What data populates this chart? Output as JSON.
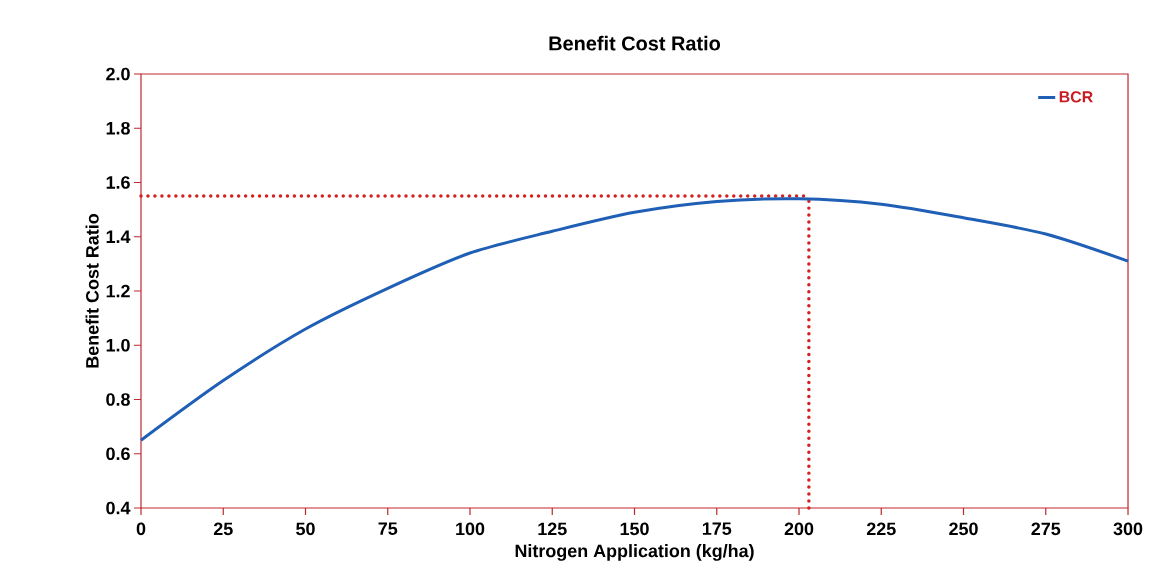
{
  "chart_data": {
    "type": "line",
    "title": "Benefit Cost Ratio",
    "xlabel": "Nitrogen Application (kg/ha)",
    "ylabel": "Benefit Cost Ratio",
    "x": [
      0,
      25,
      50,
      75,
      100,
      125,
      150,
      175,
      200,
      225,
      250,
      275,
      300
    ],
    "series": [
      {
        "name": "BCR",
        "color": "#1f5fb5",
        "values": [
          0.65,
          0.87,
          1.06,
          1.21,
          1.34,
          1.42,
          1.49,
          1.53,
          1.54,
          1.52,
          1.47,
          1.41,
          1.31
        ]
      }
    ],
    "xlim": [
      0,
      300
    ],
    "ylim": [
      0.4,
      2.0
    ],
    "xticks": [
      0,
      25,
      50,
      75,
      100,
      125,
      150,
      175,
      200,
      225,
      250,
      275,
      300
    ],
    "yticks": [
      {
        "value": 0.4,
        "label": "0.4"
      },
      {
        "value": 0.6,
        "label": "0.6"
      },
      {
        "value": 0.8,
        "label": "0.8"
      },
      {
        "value": 1.0,
        "label": "1.0"
      },
      {
        "value": 1.2,
        "label": "1.2"
      },
      {
        "value": 1.4,
        "label": "1.4"
      },
      {
        "value": 1.6,
        "label": "1.6"
      },
      {
        "value": 1.8,
        "label": "1.8"
      },
      {
        "value": 2.0,
        "label": "2.0"
      }
    ],
    "ref_lines": [
      {
        "axis": "y",
        "value": 1.55,
        "color": "#d42020",
        "line_style": "dotted"
      },
      {
        "axis": "x",
        "value": 203,
        "color": "#d42020",
        "line_style": "dotted"
      }
    ],
    "legend": "top right",
    "grid": false,
    "marker": "none",
    "line_style": "solid"
  }
}
